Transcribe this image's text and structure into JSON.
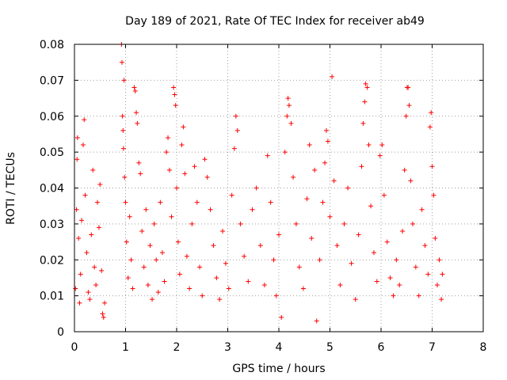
{
  "chart_data": {
    "type": "scatter",
    "title": "Day 189 of 2021, Rate Of TEC Index for receiver ab49",
    "xlabel": "GPS time / hours",
    "ylabel": "ROTI / TECUs",
    "xlim": [
      0,
      8
    ],
    "ylim": [
      0,
      0.08
    ],
    "x_ticks": [
      0,
      1,
      2,
      3,
      4,
      5,
      6,
      7,
      8
    ],
    "y_ticks": [
      0,
      0.01,
      0.02,
      0.03,
      0.04,
      0.05,
      0.06,
      0.07,
      0.08
    ],
    "x_tick_labels": [
      "0",
      "1",
      "2",
      "3",
      "4",
      "5",
      "6",
      "7",
      "8"
    ],
    "y_tick_labels": [
      "0",
      "0.01",
      "0.02",
      "0.03",
      "0.04",
      "0.05",
      "0.06",
      "0.07",
      "0.08"
    ],
    "grid": true,
    "marker": "+",
    "marker_color": "#ff0000",
    "series": [
      {
        "name": "ROTI",
        "points": [
          [
            0.02,
            0.012
          ],
          [
            0.04,
            0.034
          ],
          [
            0.05,
            0.048
          ],
          [
            0.06,
            0.054
          ],
          [
            0.08,
            0.026
          ],
          [
            0.1,
            0.008
          ],
          [
            0.12,
            0.016
          ],
          [
            0.14,
            0.031
          ],
          [
            0.17,
            0.052
          ],
          [
            0.19,
            0.059
          ],
          [
            0.21,
            0.038
          ],
          [
            0.24,
            0.022
          ],
          [
            0.27,
            0.011
          ],
          [
            0.3,
            0.009
          ],
          [
            0.33,
            0.027
          ],
          [
            0.36,
            0.045
          ],
          [
            0.39,
            0.018
          ],
          [
            0.42,
            0.013
          ],
          [
            0.45,
            0.036
          ],
          [
            0.48,
            0.029
          ],
          [
            0.5,
            0.041
          ],
          [
            0.53,
            0.017
          ],
          [
            0.55,
            0.005
          ],
          [
            0.57,
            0.004
          ],
          [
            0.59,
            0.008
          ],
          [
            0.92,
            0.08
          ],
          [
            0.93,
            0.075
          ],
          [
            0.94,
            0.06
          ],
          [
            0.95,
            0.056
          ],
          [
            0.96,
            0.051
          ],
          [
            0.97,
            0.07
          ],
          [
            0.98,
            0.043
          ],
          [
            1.0,
            0.036
          ],
          [
            1.02,
            0.025
          ],
          [
            1.05,
            0.015
          ],
          [
            1.08,
            0.032
          ],
          [
            1.11,
            0.02
          ],
          [
            1.14,
            0.012
          ],
          [
            1.17,
            0.068
          ],
          [
            1.19,
            0.067
          ],
          [
            1.21,
            0.061
          ],
          [
            1.23,
            0.058
          ],
          [
            1.26,
            0.047
          ],
          [
            1.29,
            0.044
          ],
          [
            1.32,
            0.028
          ],
          [
            1.36,
            0.018
          ],
          [
            1.4,
            0.034
          ],
          [
            1.44,
            0.013
          ],
          [
            1.48,
            0.024
          ],
          [
            1.52,
            0.009
          ],
          [
            1.56,
            0.03
          ],
          [
            1.6,
            0.02
          ],
          [
            1.64,
            0.011
          ],
          [
            1.68,
            0.036
          ],
          [
            1.72,
            0.022
          ],
          [
            1.76,
            0.014
          ],
          [
            1.8,
            0.05
          ],
          [
            1.83,
            0.054
          ],
          [
            1.86,
            0.045
          ],
          [
            1.9,
            0.032
          ],
          [
            1.94,
            0.068
          ],
          [
            1.96,
            0.066
          ],
          [
            1.98,
            0.063
          ],
          [
            2.0,
            0.04
          ],
          [
            2.03,
            0.025
          ],
          [
            2.06,
            0.016
          ],
          [
            2.1,
            0.052
          ],
          [
            2.13,
            0.057
          ],
          [
            2.16,
            0.044
          ],
          [
            2.2,
            0.021
          ],
          [
            2.25,
            0.012
          ],
          [
            2.3,
            0.03
          ],
          [
            2.35,
            0.046
          ],
          [
            2.4,
            0.036
          ],
          [
            2.45,
            0.018
          ],
          [
            2.5,
            0.01
          ],
          [
            2.55,
            0.048
          ],
          [
            2.6,
            0.043
          ],
          [
            2.66,
            0.034
          ],
          [
            2.72,
            0.024
          ],
          [
            2.78,
            0.015
          ],
          [
            2.84,
            0.009
          ],
          [
            2.9,
            0.028
          ],
          [
            2.96,
            0.019
          ],
          [
            3.02,
            0.012
          ],
          [
            3.08,
            0.038
          ],
          [
            3.13,
            0.051
          ],
          [
            3.16,
            0.06
          ],
          [
            3.19,
            0.056
          ],
          [
            3.25,
            0.03
          ],
          [
            3.32,
            0.021
          ],
          [
            3.4,
            0.014
          ],
          [
            3.48,
            0.034
          ],
          [
            3.56,
            0.04
          ],
          [
            3.64,
            0.024
          ],
          [
            3.72,
            0.013
          ],
          [
            3.78,
            0.049
          ],
          [
            3.84,
            0.036
          ],
          [
            3.9,
            0.02
          ],
          [
            3.95,
            0.01
          ],
          [
            4.0,
            0.027
          ],
          [
            4.05,
            0.004
          ],
          [
            4.12,
            0.05
          ],
          [
            4.16,
            0.06
          ],
          [
            4.18,
            0.065
          ],
          [
            4.2,
            0.063
          ],
          [
            4.24,
            0.058
          ],
          [
            4.28,
            0.043
          ],
          [
            4.34,
            0.03
          ],
          [
            4.4,
            0.018
          ],
          [
            4.48,
            0.012
          ],
          [
            4.55,
            0.037
          ],
          [
            4.6,
            0.052
          ],
          [
            4.64,
            0.026
          ],
          [
            4.7,
            0.045
          ],
          [
            4.74,
            0.003
          ],
          [
            4.8,
            0.02
          ],
          [
            4.86,
            0.036
          ],
          [
            4.9,
            0.047
          ],
          [
            4.93,
            0.056
          ],
          [
            4.96,
            0.053
          ],
          [
            5.0,
            0.032
          ],
          [
            5.04,
            0.071
          ],
          [
            5.08,
            0.042
          ],
          [
            5.14,
            0.024
          ],
          [
            5.2,
            0.013
          ],
          [
            5.28,
            0.03
          ],
          [
            5.35,
            0.04
          ],
          [
            5.42,
            0.019
          ],
          [
            5.5,
            0.009
          ],
          [
            5.56,
            0.027
          ],
          [
            5.62,
            0.046
          ],
          [
            5.65,
            0.058
          ],
          [
            5.68,
            0.064
          ],
          [
            5.7,
            0.069
          ],
          [
            5.73,
            0.068
          ],
          [
            5.76,
            0.052
          ],
          [
            5.8,
            0.035
          ],
          [
            5.86,
            0.022
          ],
          [
            5.92,
            0.014
          ],
          [
            5.98,
            0.049
          ],
          [
            6.02,
            0.052
          ],
          [
            6.06,
            0.038
          ],
          [
            6.12,
            0.025
          ],
          [
            6.18,
            0.015
          ],
          [
            6.24,
            0.01
          ],
          [
            6.3,
            0.02
          ],
          [
            6.36,
            0.013
          ],
          [
            6.42,
            0.028
          ],
          [
            6.46,
            0.045
          ],
          [
            6.49,
            0.06
          ],
          [
            6.51,
            0.068
          ],
          [
            6.53,
            0.068
          ],
          [
            6.55,
            0.063
          ],
          [
            6.58,
            0.042
          ],
          [
            6.62,
            0.03
          ],
          [
            6.68,
            0.018
          ],
          [
            6.74,
            0.01
          ],
          [
            6.8,
            0.034
          ],
          [
            6.86,
            0.024
          ],
          [
            6.92,
            0.016
          ],
          [
            6.96,
            0.057
          ],
          [
            6.98,
            0.061
          ],
          [
            7.0,
            0.046
          ],
          [
            7.03,
            0.038
          ],
          [
            7.06,
            0.026
          ],
          [
            7.1,
            0.013
          ],
          [
            7.14,
            0.02
          ],
          [
            7.18,
            0.009
          ],
          [
            7.2,
            0.016
          ]
        ]
      }
    ]
  }
}
